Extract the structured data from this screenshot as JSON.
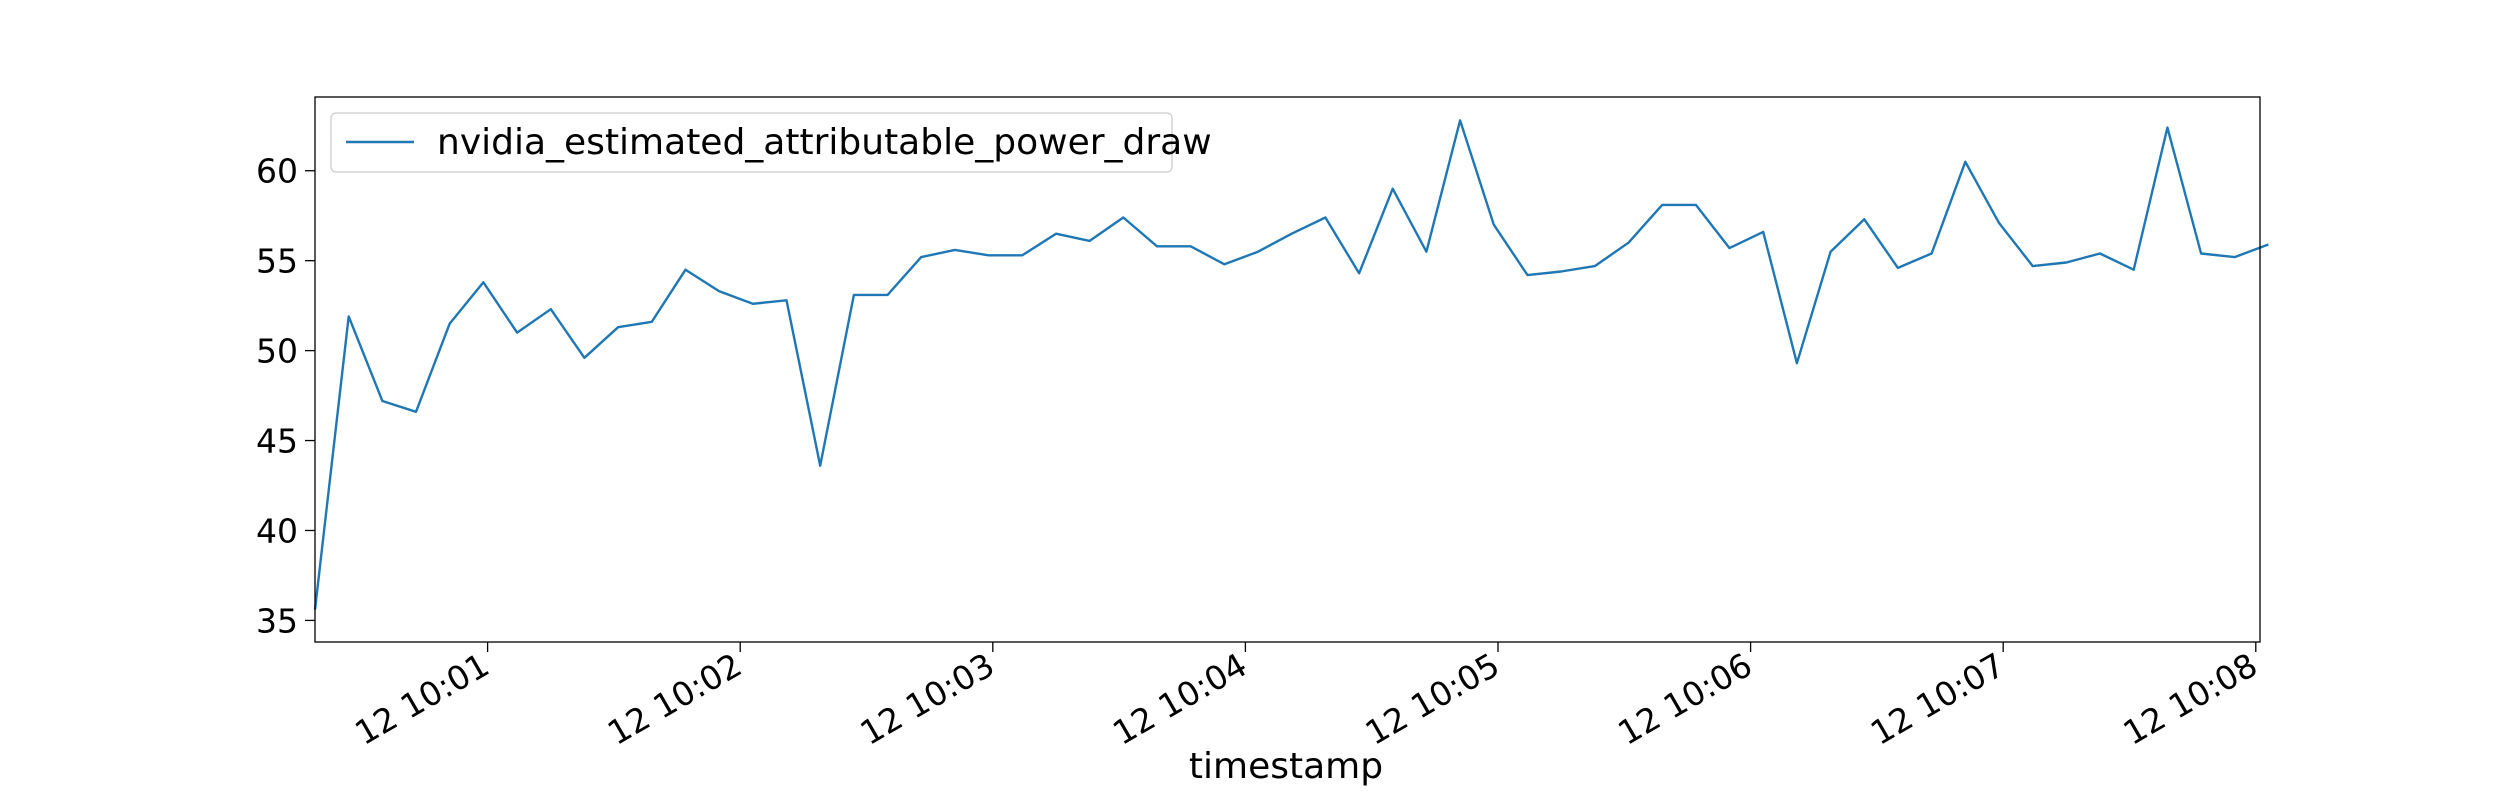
{
  "chart_data": {
    "type": "line",
    "title": "",
    "xlabel": "timestamp",
    "ylabel": "",
    "legend": {
      "placement": "upper-left",
      "entries": [
        "nvidia_estimated_attributable_power_draw"
      ]
    },
    "grid": false,
    "x_ticks": [
      "12 10:01",
      "12 10:02",
      "12 10:03",
      "12 10:04",
      "12 10:05",
      "12 10:06",
      "12 10:07",
      "12 10:08"
    ],
    "y_ticks": [
      "35",
      "40",
      "45",
      "50",
      "55",
      "60"
    ],
    "xlim": [
      "10:00:19",
      "10:08:01"
    ],
    "ylim": [
      33.8,
      64.1
    ],
    "color": "#1f77b4",
    "series": [
      {
        "name": "nvidia_estimated_attributable_power_draw",
        "x": [
          "10:00:19",
          "10:00:27",
          "10:00:35",
          "10:00:43",
          "10:00:51",
          "10:00:59",
          "10:01:07",
          "10:01:15",
          "10:01:23",
          "10:01:31",
          "10:01:39",
          "10:01:47",
          "10:01:55",
          "10:02:03",
          "10:02:11",
          "10:02:19",
          "10:02:27",
          "10:02:35",
          "10:02:43",
          "10:02:51",
          "10:02:59",
          "10:03:07",
          "10:03:15",
          "10:03:23",
          "10:03:31",
          "10:03:39",
          "10:03:47",
          "10:03:55",
          "10:04:03",
          "10:04:11",
          "10:04:19",
          "10:04:27",
          "10:04:35",
          "10:04:43",
          "10:04:51",
          "10:04:59",
          "10:05:07",
          "10:05:15",
          "10:05:23",
          "10:05:31",
          "10:05:39",
          "10:05:47",
          "10:05:55",
          "10:06:03",
          "10:06:11",
          "10:06:19",
          "10:06:27",
          "10:06:35",
          "10:06:43",
          "10:06:51",
          "10:06:59",
          "10:07:07",
          "10:07:15",
          "10:07:23",
          "10:07:31",
          "10:07:39",
          "10:07:47",
          "10:07:55",
          "10:08:03"
        ],
        "y": [
          35.6,
          51.9,
          47.2,
          46.6,
          51.5,
          53.8,
          51.0,
          52.3,
          49.6,
          51.3,
          51.6,
          54.5,
          53.3,
          52.6,
          52.8,
          43.6,
          53.1,
          53.1,
          55.2,
          55.6,
          55.3,
          55.3,
          56.5,
          56.1,
          57.4,
          55.8,
          55.8,
          54.8,
          55.5,
          56.5,
          57.4,
          54.3,
          59.0,
          55.5,
          62.8,
          57.0,
          54.2,
          54.4,
          54.7,
          56.0,
          58.1,
          58.1,
          55.7,
          56.6,
          49.3,
          55.5,
          57.3,
          54.6,
          55.4,
          60.5,
          57.1,
          54.7,
          54.9,
          55.4,
          54.5,
          62.4,
          55.4,
          55.2,
          55.9
        ]
      }
    ]
  }
}
